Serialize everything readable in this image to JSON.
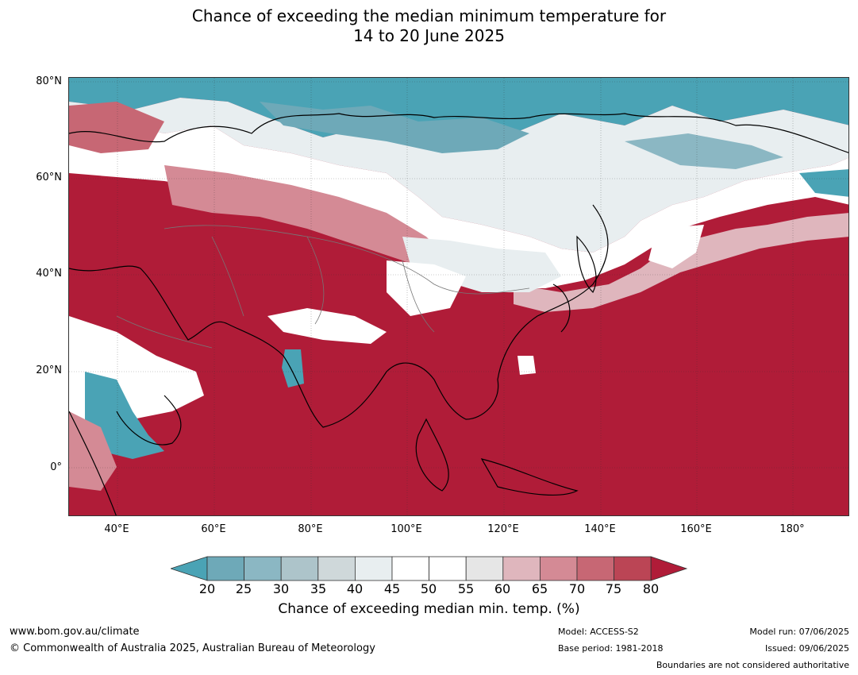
{
  "title": {
    "line1": "Chance of exceeding the median minimum temperature for",
    "line2": "14 to 20 June 2025"
  },
  "axes": {
    "lat_labels": [
      "80°N",
      "60°N",
      "40°N",
      "20°N",
      "0°"
    ],
    "lon_labels": [
      "40°E",
      "60°E",
      "80°E",
      "100°E",
      "120°E",
      "140°E",
      "160°E",
      "180°"
    ]
  },
  "colorbar": {
    "ticks": [
      "20",
      "25",
      "30",
      "35",
      "40",
      "45",
      "50",
      "55",
      "60",
      "65",
      "70",
      "75",
      "80"
    ],
    "label": "Chance of exceeding median min. temp. (%)",
    "colors": {
      "below20": "#4aa3b5",
      "20-25": "#6ea9b8",
      "25-30": "#8bb7c3",
      "30-35": "#adc4ca",
      "35-40": "#cfd8da",
      "40-45": "#e8eef0",
      "45-50": "#ffffff",
      "50-55": "#ffffff",
      "55-60": "#e6e6e6",
      "60-65": "#dfb6bd",
      "65-70": "#d48a95",
      "70-75": "#c76774",
      "75-80": "#bb4555",
      "above80": "#b01c38"
    }
  },
  "footer": {
    "url": "www.bom.gov.au/climate",
    "copyright": "© Commonwealth of Australia 2025, Australian Bureau of Meteorology",
    "model": "Model: ACCESS-S2",
    "base_period": "Base period: 1981-2018",
    "model_run": "Model run: 07/06/2025",
    "issued": "Issued: 09/06/2025",
    "disclaimer": "Boundaries are not considered authoritative"
  }
}
